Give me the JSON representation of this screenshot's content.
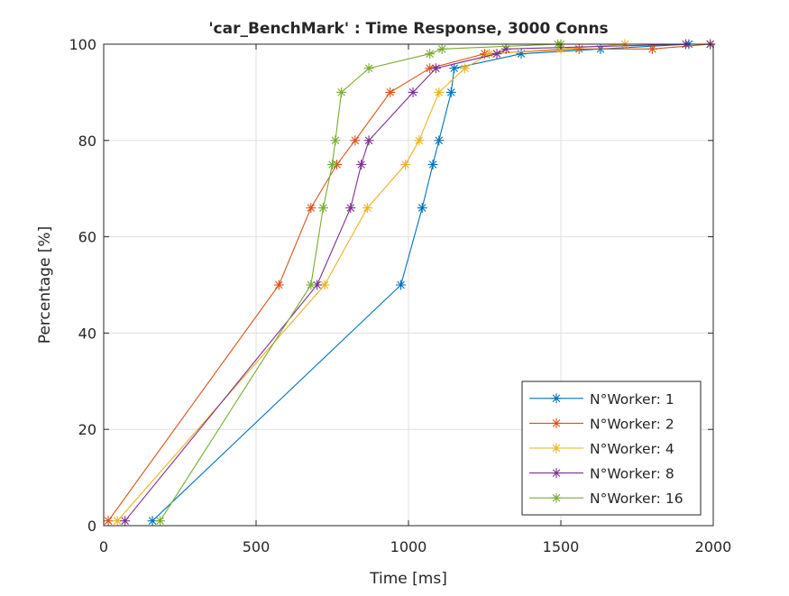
{
  "chart_data": {
    "type": "line",
    "title": "'car_BenchMark' : Time Response, 3000 Conns",
    "xlabel": "Time [ms]",
    "ylabel": "Percentage [%]",
    "xlim": [
      0,
      2000
    ],
    "ylim": [
      0,
      100
    ],
    "xticks": [
      0,
      500,
      1000,
      1500,
      2000
    ],
    "yticks": [
      0,
      20,
      40,
      60,
      80,
      100
    ],
    "xtick_labels": [
      "0",
      "500",
      "1000",
      "1500",
      "2000"
    ],
    "ytick_labels": [
      "0",
      "20",
      "40",
      "60",
      "80",
      "100"
    ],
    "grid": true,
    "legend_position": "bottom-right",
    "marker": "asterisk",
    "series": [
      {
        "name": "N°Worker: 1",
        "color": "#0072BD",
        "points": [
          [
            160,
            1
          ],
          [
            975,
            50
          ],
          [
            1045,
            66
          ],
          [
            1080,
            75
          ],
          [
            1100,
            80
          ],
          [
            1140,
            90
          ],
          [
            1150,
            95
          ],
          [
            1370,
            98
          ],
          [
            1630,
            99
          ],
          [
            1920,
            100
          ],
          [
            1990,
            100
          ]
        ]
      },
      {
        "name": "N°Worker: 2",
        "color": "#D95319",
        "points": [
          [
            15,
            1
          ],
          [
            575,
            50
          ],
          [
            680,
            66
          ],
          [
            765,
            75
          ],
          [
            825,
            80
          ],
          [
            940,
            90
          ],
          [
            1070,
            95
          ],
          [
            1250,
            98
          ],
          [
            1560,
            99
          ],
          [
            1800,
            99
          ],
          [
            1990,
            100
          ]
        ]
      },
      {
        "name": "N°Worker: 4",
        "color": "#EDB120",
        "points": [
          [
            45,
            1
          ],
          [
            725,
            50
          ],
          [
            865,
            66
          ],
          [
            990,
            75
          ],
          [
            1035,
            80
          ],
          [
            1100,
            90
          ],
          [
            1185,
            95
          ],
          [
            1265,
            98
          ],
          [
            1500,
            99
          ],
          [
            1710,
            100
          ],
          [
            1990,
            100
          ]
        ]
      },
      {
        "name": "N°Worker: 8",
        "color": "#7E2F8E",
        "points": [
          [
            70,
            1
          ],
          [
            700,
            50
          ],
          [
            810,
            66
          ],
          [
            845,
            75
          ],
          [
            870,
            80
          ],
          [
            1015,
            90
          ],
          [
            1090,
            95
          ],
          [
            1290,
            98
          ],
          [
            1320,
            99
          ],
          [
            1910,
            100
          ],
          [
            1990,
            100
          ]
        ]
      },
      {
        "name": "N°Worker: 16",
        "color": "#77AC30",
        "points": [
          [
            185,
            1
          ],
          [
            680,
            50
          ],
          [
            720,
            66
          ],
          [
            750,
            75
          ],
          [
            760,
            80
          ],
          [
            780,
            90
          ],
          [
            870,
            95
          ],
          [
            1070,
            98
          ],
          [
            1110,
            99
          ],
          [
            1490,
            100
          ],
          [
            1500,
            100
          ]
        ]
      }
    ]
  }
}
